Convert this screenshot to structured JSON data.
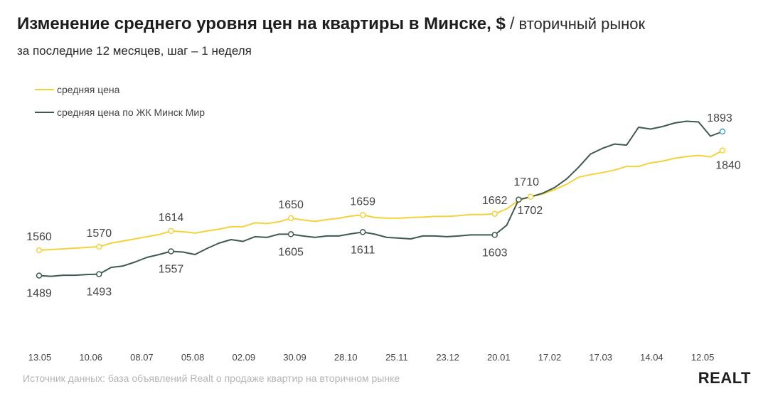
{
  "header": {
    "title": "Изменение среднего уровня цен на квартиры в Минске, $",
    "separator": "/",
    "market": "вторичный рынок",
    "subtitle": "за последние 12 месяцев, шаг – 1 неделя"
  },
  "footer": {
    "source": "Источник данных: база объявлений Realt о продаже квартир на вторичном рынке",
    "logo": "REALT"
  },
  "colors": {
    "avg_price": "#f5d23b",
    "minsk_mir": "#3f5a4c",
    "endpoint_marker": "#4aa3c9"
  },
  "chart_data": {
    "type": "line",
    "x_tick_labels": [
      "13.05",
      "10.06",
      "08.07",
      "05.08",
      "02.09",
      "30.09",
      "28.10",
      "25.11",
      "23.12",
      "20.01",
      "17.02",
      "17.03",
      "14.04",
      "12.05"
    ],
    "series": [
      {
        "name": "средняя цена",
        "values": [
          1560,
          1562,
          1564,
          1566,
          1568,
          1570,
          1580,
          1586,
          1592,
          1598,
          1604,
          1614,
          1612,
          1608,
          1614,
          1619,
          1626,
          1626,
          1637,
          1635,
          1640,
          1650,
          1645,
          1641,
          1646,
          1650,
          1656,
          1659,
          1652,
          1650,
          1650,
          1652,
          1653,
          1655,
          1655,
          1657,
          1660,
          1660,
          1662,
          1676,
          1700,
          1710,
          1718,
          1730,
          1745,
          1765,
          1772,
          1778,
          1785,
          1795,
          1795,
          1805,
          1810,
          1818,
          1823,
          1826,
          1822,
          1840
        ]
      },
      {
        "name": "средняя цена по ЖК Минск Мир",
        "values": [
          1489,
          1487,
          1490,
          1490,
          1492,
          1493,
          1512,
          1516,
          1527,
          1540,
          1548,
          1557,
          1555,
          1548,
          1565,
          1580,
          1590,
          1585,
          1598,
          1596,
          1605,
          1605,
          1600,
          1596,
          1600,
          1600,
          1606,
          1611,
          1605,
          1596,
          1594,
          1592,
          1600,
          1600,
          1598,
          1600,
          1603,
          1603,
          1603,
          1630,
          1702,
          1710,
          1720,
          1736,
          1760,
          1793,
          1830,
          1846,
          1858,
          1855,
          1905,
          1900,
          1907,
          1917,
          1922,
          1920,
          1880,
          1893
        ]
      }
    ],
    "data_labels": [
      {
        "series": 0,
        "index": 0,
        "text": "1560"
      },
      {
        "series": 0,
        "index": 5,
        "text": "1570"
      },
      {
        "series": 0,
        "index": 11,
        "text": "1614"
      },
      {
        "series": 0,
        "index": 21,
        "text": "1650"
      },
      {
        "series": 0,
        "index": 27,
        "text": "1659"
      },
      {
        "series": 0,
        "index": 38,
        "text": "1662"
      },
      {
        "series": 0,
        "index": 41,
        "text": "1710"
      },
      {
        "series": 0,
        "index": 57,
        "text": "1840"
      },
      {
        "series": 1,
        "index": 0,
        "text": "1489"
      },
      {
        "series": 1,
        "index": 5,
        "text": "1493"
      },
      {
        "series": 1,
        "index": 11,
        "text": "1557"
      },
      {
        "series": 1,
        "index": 21,
        "text": "1605"
      },
      {
        "series": 1,
        "index": 27,
        "text": "1611"
      },
      {
        "series": 1,
        "index": 38,
        "text": "1603"
      },
      {
        "series": 1,
        "index": 40,
        "text": "1702"
      },
      {
        "series": 1,
        "index": 57,
        "text": "1893"
      }
    ],
    "ylim": [
      1400,
      2000
    ],
    "grid": false,
    "legend_position": "top-left"
  }
}
